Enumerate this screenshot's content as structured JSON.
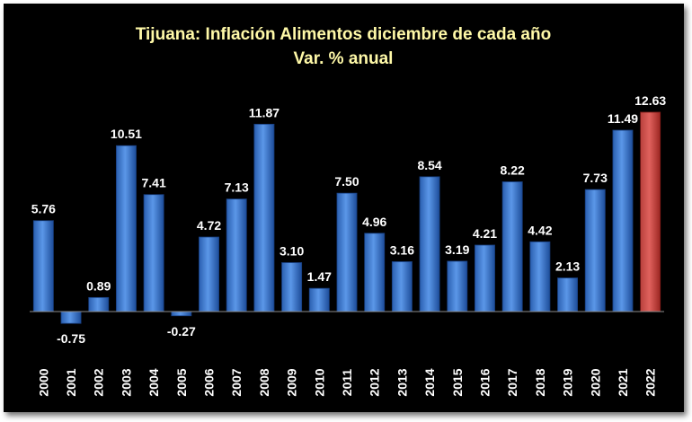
{
  "chart_data": {
    "type": "bar",
    "title": "Tijuana: Inflación Alimentos diciembre de cada año",
    "subtitle": "Var. % anual",
    "xlabel": "",
    "ylabel": "",
    "ylim": [
      -2.5,
      14
    ],
    "grid": false,
    "legend": "none",
    "categories": [
      "2000",
      "2001",
      "2002",
      "2003",
      "2004",
      "2005",
      "2006",
      "2007",
      "2008",
      "2009",
      "2010",
      "2011",
      "2012",
      "2013",
      "2014",
      "2015",
      "2016",
      "2017",
      "2018",
      "2019",
      "2020",
      "2021",
      "2022"
    ],
    "values": [
      5.76,
      -0.75,
      0.89,
      10.51,
      7.41,
      -0.27,
      4.72,
      7.13,
      11.87,
      3.1,
      1.47,
      7.5,
      4.96,
      3.16,
      8.54,
      3.19,
      4.21,
      8.22,
      4.42,
      2.13,
      7.73,
      11.49,
      12.63
    ],
    "labels": [
      "5.76",
      "-0.75",
      "0.89",
      "10.51",
      "7.41",
      "-0.27",
      "4.72",
      "7.13",
      "11.87",
      "3.10",
      "1.47",
      "7.50",
      "4.96",
      "3.16",
      "8.54",
      "3.19",
      "4.21",
      "8.22",
      "4.42",
      "2.13",
      "7.73",
      "11.49",
      "12.63"
    ],
    "highlight_index": 22
  },
  "colors": {
    "background": "#000000",
    "bar": "#4a86d8",
    "bar_dark": "#1d4d9a",
    "bar_highlight": "#d9534f",
    "bar_highlight_dark": "#9c2622",
    "title": "#fff9a8",
    "text": "#ffffff",
    "axis": "#8c8c8c"
  }
}
